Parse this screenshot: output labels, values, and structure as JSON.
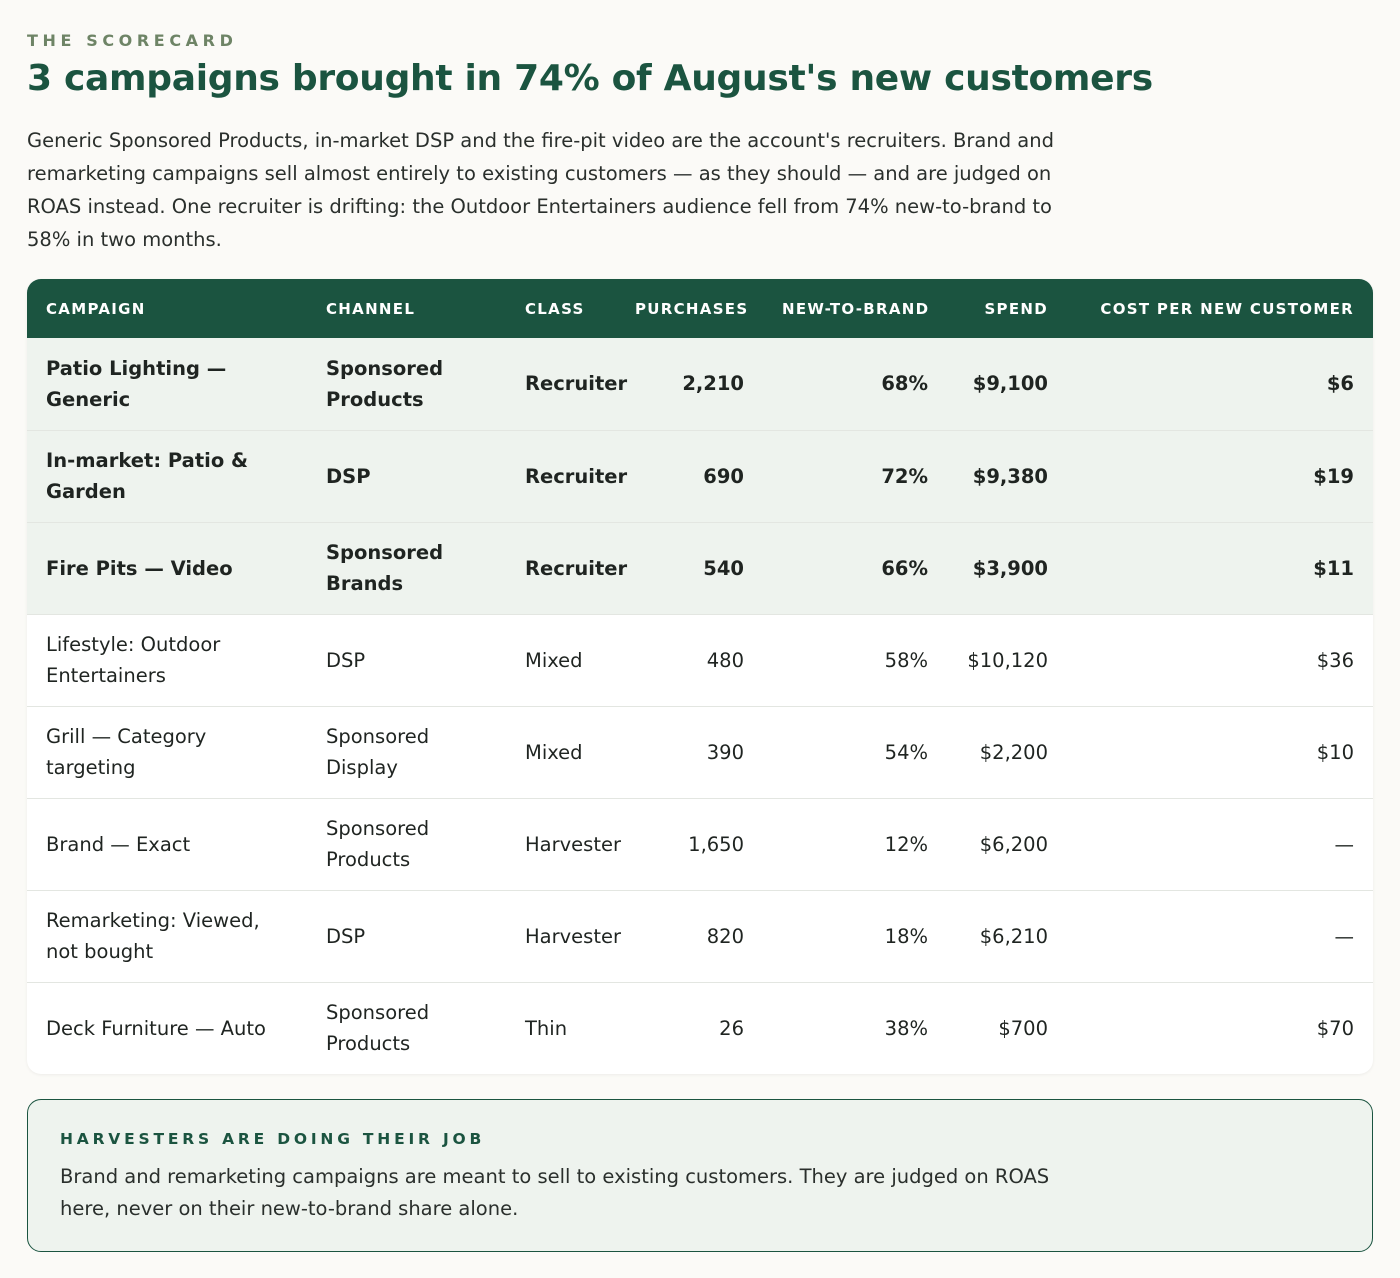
{
  "header": {
    "eyebrow": "THE SCORECARD",
    "headline": "3 campaigns brought in 74% of August's new customers",
    "lede": "Generic Sponsored Products, in-market DSP and the fire-pit video are the account's recruiters. Brand and remarketing campaigns sell almost entirely to existing customers — as they should — and are judged on ROAS instead. One recruiter is drifting: the Outdoor Entertainers audience fell from 74% new-to-brand to 58% in two months."
  },
  "table": {
    "columns": [
      "CAMPAIGN",
      "CHANNEL",
      "CLASS",
      "PURCHASES",
      "NEW-TO-BRAND",
      "SPEND",
      "COST PER NEW CUSTOMER"
    ],
    "rows": [
      {
        "campaign": "Patio Lighting — Generic",
        "channel": "Sponsored Products",
        "class": "Recruiter",
        "purchases": "2,210",
        "ntb": "68%",
        "spend": "$9,100",
        "cost": "$6",
        "highlight": true
      },
      {
        "campaign": "In-market: Patio & Garden",
        "channel": "DSP",
        "class": "Recruiter",
        "purchases": "690",
        "ntb": "72%",
        "spend": "$9,380",
        "cost": "$19",
        "highlight": true
      },
      {
        "campaign": "Fire Pits — Video",
        "channel": "Sponsored Brands",
        "class": "Recruiter",
        "purchases": "540",
        "ntb": "66%",
        "spend": "$3,900",
        "cost": "$11",
        "highlight": true
      },
      {
        "campaign": "Lifestyle: Outdoor Entertainers",
        "channel": "DSP",
        "class": "Mixed",
        "purchases": "480",
        "ntb": "58%",
        "spend": "$10,120",
        "cost": "$36",
        "highlight": false
      },
      {
        "campaign": "Grill — Category targeting",
        "channel": "Sponsored Display",
        "class": "Mixed",
        "purchases": "390",
        "ntb": "54%",
        "spend": "$2,200",
        "cost": "$10",
        "highlight": false
      },
      {
        "campaign": "Brand — Exact",
        "channel": "Sponsored Products",
        "class": "Harvester",
        "purchases": "1,650",
        "ntb": "12%",
        "spend": "$6,200",
        "cost": "—",
        "highlight": false
      },
      {
        "campaign": "Remarketing: Viewed, not bought",
        "channel": "DSP",
        "class": "Harvester",
        "purchases": "820",
        "ntb": "18%",
        "spend": "$6,210",
        "cost": "—",
        "highlight": false
      },
      {
        "campaign": "Deck Furniture — Auto",
        "channel": "Sponsored Products",
        "class": "Thin",
        "purchases": "26",
        "ntb": "38%",
        "spend": "$700",
        "cost": "$70",
        "highlight": false
      }
    ]
  },
  "note": {
    "title": "HARVESTERS ARE DOING THEIR JOB",
    "body": "Brand and remarketing campaigns are meant to sell to existing customers. They are judged on ROAS here, never on their new-to-brand share alone."
  },
  "colors": {
    "accent": "#1b5440",
    "eyebrow": "#6e8466",
    "highlight_row": "#eef3ee",
    "page_background": "#fbfaf7"
  }
}
